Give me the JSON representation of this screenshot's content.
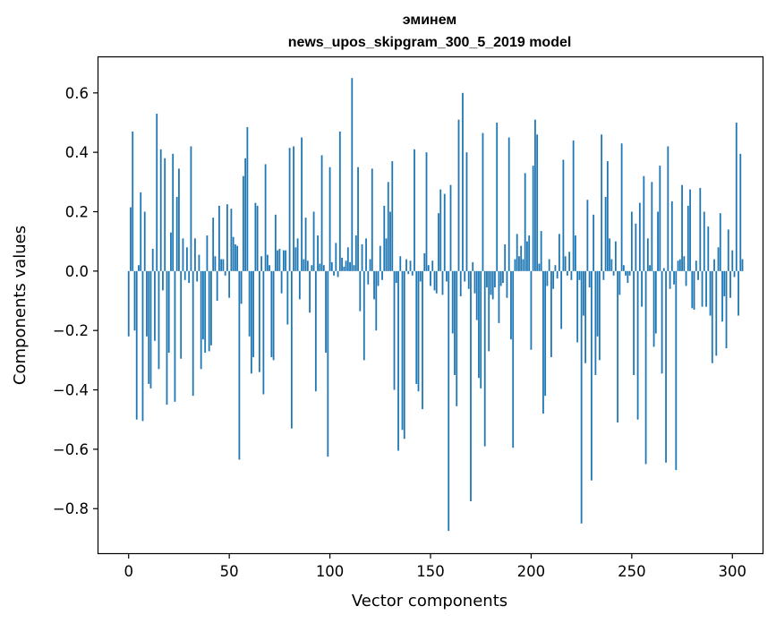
{
  "chart_data": {
    "type": "bar",
    "title_line1": "эминем",
    "title_line2": "news_upos_skipgram_300_5_2019 model",
    "xlabel": "Vector components",
    "ylabel": "Components values",
    "xlim": [
      -15,
      315
    ],
    "ylim": [
      -0.95,
      0.72
    ],
    "x_ticks": [
      0,
      50,
      100,
      150,
      200,
      250,
      300
    ],
    "x_tick_labels": [
      "0",
      "50",
      "100",
      "150",
      "200",
      "250",
      "300"
    ],
    "y_ticks": [
      -0.8,
      -0.6,
      -0.4,
      -0.2,
      0.0,
      0.2,
      0.4,
      0.6
    ],
    "y_tick_labels": [
      "−0.8",
      "−0.6",
      "−0.4",
      "−0.2",
      "0.0",
      "0.2",
      "0.4",
      "0.6"
    ],
    "bar_color": "#1f77b4",
    "series": [
      {
        "name": "эминем",
        "values": [
          -0.22,
          0.215,
          0.47,
          -0.2,
          -0.5,
          0.02,
          0.265,
          -0.505,
          0.2,
          -0.22,
          -0.38,
          -0.395,
          0.075,
          -0.235,
          0.53,
          -0.33,
          0.41,
          -0.065,
          0.38,
          -0.45,
          -0.275,
          0.13,
          0.395,
          -0.44,
          0.25,
          0.345,
          -0.295,
          0.11,
          -0.03,
          0.08,
          -0.04,
          0.42,
          -0.42,
          0.11,
          -0.035,
          0.055,
          -0.33,
          -0.23,
          -0.275,
          0.12,
          -0.27,
          -0.25,
          0.18,
          0.05,
          -0.1,
          0.22,
          0.04,
          0.04,
          -0.015,
          0.225,
          -0.09,
          0.21,
          0.115,
          0.09,
          0.085,
          -0.635,
          -0.11,
          0.32,
          0.38,
          0.485,
          -0.22,
          -0.345,
          -0.29,
          0.23,
          0.22,
          -0.34,
          0.05,
          -0.415,
          0.36,
          0.055,
          0.02,
          -0.29,
          -0.3,
          0.19,
          0.07,
          0.075,
          -0.075,
          0.07,
          0.07,
          -0.18,
          0.415,
          -0.53,
          0.42,
          0.08,
          0.11,
          -0.095,
          0.45,
          0.04,
          0.18,
          0.035,
          -0.14,
          0.02,
          0.2,
          -0.405,
          0.12,
          0.025,
          0.39,
          0.02,
          -0.275,
          -0.625,
          0.35,
          0.03,
          -0.015,
          0.095,
          -0.02,
          0.47,
          0.045,
          0.015,
          0.035,
          0.08,
          0.03,
          0.65,
          0.02,
          0.12,
          0.35,
          -0.135,
          0.09,
          -0.3,
          0.11,
          -0.045,
          0.04,
          0.345,
          -0.095,
          -0.2,
          -0.05,
          0.085,
          -0.03,
          0.22,
          0.11,
          0.3,
          0.2,
          0.37,
          -0.4,
          -0.04,
          -0.605,
          0.05,
          -0.535,
          -0.565,
          0.04,
          -0.01,
          0.035,
          -0.015,
          0.41,
          -0.38,
          -0.405,
          -0.035,
          -0.465,
          0.06,
          0.4,
          0.02,
          -0.05,
          0.035,
          -0.065,
          -0.075,
          0.195,
          0.275,
          -0.08,
          0.26,
          -0.035,
          -0.875,
          0.29,
          -0.21,
          -0.35,
          -0.455,
          0.51,
          -0.085,
          0.6,
          -0.035,
          0.4,
          -0.06,
          -0.775,
          0.03,
          -0.075,
          -0.165,
          -0.36,
          -0.395,
          0.465,
          -0.59,
          -0.055,
          -0.27,
          -0.08,
          -0.095,
          -0.055,
          0.5,
          -0.175,
          -0.05,
          -0.04,
          0.09,
          -0.09,
          0.45,
          -0.23,
          -0.595,
          0.04,
          0.125,
          0.05,
          0.085,
          0.04,
          0.33,
          0.1,
          0.12,
          -0.265,
          0.355,
          0.51,
          0.46,
          0.025,
          0.135,
          -0.48,
          -0.42,
          -0.05,
          0.04,
          -0.29,
          -0.06,
          0.02,
          -0.025,
          0.125,
          -0.195,
          0.375,
          0.05,
          -0.015,
          0.065,
          -0.03,
          0.44,
          0.12,
          -0.24,
          -0.03,
          -0.85,
          -0.15,
          -0.31,
          0.24,
          -0.055,
          -0.705,
          0.19,
          -0.35,
          -0.22,
          -0.3,
          0.46,
          -0.03,
          0.25,
          0.37,
          0.11,
          0.04,
          -0.015,
          0.1,
          -0.51,
          -0.08,
          0.43,
          0.02,
          -0.015,
          -0.04,
          -0.015,
          0.2,
          -0.35,
          0.16,
          -0.5,
          0.23,
          -0.12,
          0.32,
          -0.65,
          0.11,
          0.02,
          0.3,
          -0.255,
          -0.21,
          0.2,
          0.355,
          -0.345,
          0.01,
          -0.645,
          0.42,
          -0.06,
          0.235,
          -0.045,
          -0.67,
          0.035,
          0.04,
          0.29,
          0.05,
          -0.05,
          0.22,
          0.275,
          -0.125,
          -0.13,
          0.035,
          -0.03,
          0.28,
          -0.12,
          0.2,
          -0.12,
          0.15,
          -0.15,
          -0.31,
          0.04,
          -0.285,
          0.08,
          0.195,
          -0.17,
          -0.085,
          -0.26,
          0.14,
          -0.09,
          0.07,
          -0.02,
          0.5,
          -0.15,
          0.395,
          0.04
        ]
      }
    ]
  }
}
